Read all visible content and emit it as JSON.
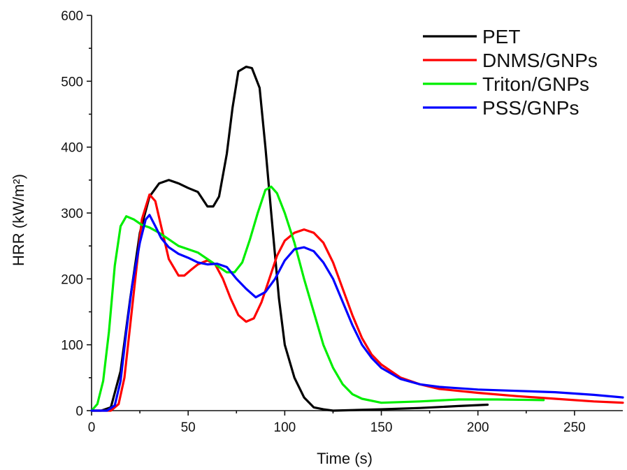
{
  "chart_data": {
    "type": "line",
    "title": "",
    "xlabel": "Time (s)",
    "ylabel": "HRR (kW/m²)",
    "xlim": [
      0,
      275
    ],
    "ylim": [
      0,
      600
    ],
    "x_ticks": [
      "0",
      "50",
      "100",
      "150",
      "200",
      "250"
    ],
    "y_ticks": [
      "0",
      "100",
      "200",
      "300",
      "400",
      "500",
      "600"
    ],
    "grid": false,
    "legend_position": "top-right",
    "series": [
      {
        "name": "PET",
        "color": "#000000",
        "points": [
          [
            0,
            0
          ],
          [
            5,
            0
          ],
          [
            10,
            5
          ],
          [
            15,
            60
          ],
          [
            20,
            170
          ],
          [
            25,
            270
          ],
          [
            30,
            325
          ],
          [
            35,
            345
          ],
          [
            40,
            350
          ],
          [
            45,
            345
          ],
          [
            50,
            338
          ],
          [
            55,
            332
          ],
          [
            60,
            310
          ],
          [
            63,
            310
          ],
          [
            66,
            325
          ],
          [
            70,
            390
          ],
          [
            73,
            460
          ],
          [
            76,
            515
          ],
          [
            80,
            522
          ],
          [
            83,
            520
          ],
          [
            87,
            490
          ],
          [
            90,
            400
          ],
          [
            93,
            300
          ],
          [
            97,
            170
          ],
          [
            100,
            100
          ],
          [
            105,
            50
          ],
          [
            110,
            20
          ],
          [
            115,
            5
          ],
          [
            120,
            2
          ],
          [
            125,
            0
          ],
          [
            150,
            2
          ],
          [
            170,
            4
          ],
          [
            190,
            7
          ],
          [
            205,
            9
          ]
        ]
      },
      {
        "name": "DNMS/GNPs",
        "color": "#ff0000",
        "points": [
          [
            0,
            0
          ],
          [
            10,
            0
          ],
          [
            14,
            10
          ],
          [
            17,
            50
          ],
          [
            20,
            130
          ],
          [
            23,
            210
          ],
          [
            26,
            290
          ],
          [
            30,
            328
          ],
          [
            33,
            318
          ],
          [
            36,
            280
          ],
          [
            40,
            230
          ],
          [
            45,
            205
          ],
          [
            48,
            205
          ],
          [
            52,
            215
          ],
          [
            55,
            222
          ],
          [
            60,
            228
          ],
          [
            64,
            222
          ],
          [
            68,
            200
          ],
          [
            72,
            170
          ],
          [
            76,
            145
          ],
          [
            80,
            135
          ],
          [
            84,
            140
          ],
          [
            88,
            165
          ],
          [
            92,
            200
          ],
          [
            96,
            235
          ],
          [
            100,
            258
          ],
          [
            105,
            270
          ],
          [
            110,
            275
          ],
          [
            115,
            270
          ],
          [
            120,
            255
          ],
          [
            125,
            225
          ],
          [
            130,
            185
          ],
          [
            135,
            145
          ],
          [
            140,
            110
          ],
          [
            145,
            85
          ],
          [
            150,
            70
          ],
          [
            160,
            50
          ],
          [
            170,
            40
          ],
          [
            180,
            33
          ],
          [
            200,
            27
          ],
          [
            220,
            22
          ],
          [
            240,
            18
          ],
          [
            260,
            14
          ],
          [
            275,
            12
          ]
        ]
      },
      {
        "name": "Triton/GNPs",
        "color": "#00ee00",
        "points": [
          [
            0,
            0
          ],
          [
            3,
            10
          ],
          [
            6,
            45
          ],
          [
            9,
            120
          ],
          [
            12,
            220
          ],
          [
            15,
            280
          ],
          [
            18,
            295
          ],
          [
            22,
            290
          ],
          [
            26,
            282
          ],
          [
            30,
            278
          ],
          [
            35,
            270
          ],
          [
            40,
            260
          ],
          [
            45,
            250
          ],
          [
            50,
            245
          ],
          [
            55,
            240
          ],
          [
            60,
            230
          ],
          [
            65,
            220
          ],
          [
            70,
            210
          ],
          [
            74,
            210
          ],
          [
            78,
            225
          ],
          [
            82,
            260
          ],
          [
            86,
            300
          ],
          [
            90,
            335
          ],
          [
            93,
            340
          ],
          [
            96,
            330
          ],
          [
            100,
            300
          ],
          [
            105,
            255
          ],
          [
            110,
            200
          ],
          [
            115,
            150
          ],
          [
            120,
            100
          ],
          [
            125,
            65
          ],
          [
            130,
            40
          ],
          [
            135,
            25
          ],
          [
            140,
            18
          ],
          [
            150,
            12
          ],
          [
            170,
            14
          ],
          [
            190,
            17
          ],
          [
            210,
            17
          ],
          [
            234,
            16
          ]
        ]
      },
      {
        "name": "PSS/GNPs",
        "color": "#0000ff",
        "points": [
          [
            0,
            0
          ],
          [
            8,
            0
          ],
          [
            12,
            8
          ],
          [
            15,
            45
          ],
          [
            18,
            120
          ],
          [
            21,
            190
          ],
          [
            25,
            255
          ],
          [
            28,
            290
          ],
          [
            30,
            297
          ],
          [
            33,
            280
          ],
          [
            36,
            262
          ],
          [
            40,
            248
          ],
          [
            45,
            238
          ],
          [
            50,
            232
          ],
          [
            55,
            225
          ],
          [
            60,
            222
          ],
          [
            65,
            223
          ],
          [
            70,
            218
          ],
          [
            75,
            200
          ],
          [
            80,
            185
          ],
          [
            85,
            172
          ],
          [
            90,
            180
          ],
          [
            95,
            200
          ],
          [
            100,
            228
          ],
          [
            105,
            245
          ],
          [
            110,
            248
          ],
          [
            115,
            242
          ],
          [
            120,
            225
          ],
          [
            125,
            200
          ],
          [
            130,
            165
          ],
          [
            135,
            130
          ],
          [
            140,
            100
          ],
          [
            145,
            80
          ],
          [
            150,
            65
          ],
          [
            160,
            48
          ],
          [
            170,
            40
          ],
          [
            180,
            36
          ],
          [
            200,
            32
          ],
          [
            220,
            30
          ],
          [
            240,
            28
          ],
          [
            260,
            24
          ],
          [
            275,
            20
          ]
        ]
      }
    ]
  }
}
